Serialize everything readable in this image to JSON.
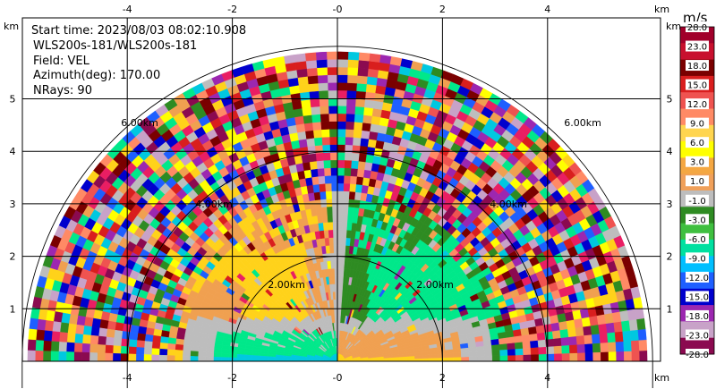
{
  "info": {
    "start_time": "Start time: 2023/08/03 08:02:10.908",
    "instrument": "WLS200s-181/WLS200s-181",
    "field": "Field: VEL",
    "azimuth": "Azimuth(deg): 170.00",
    "nrays": "NRays: 90"
  },
  "chart_data": {
    "type": "heatmap",
    "projection": "polar RHI half-disc",
    "x_unit_label": "km",
    "y_unit_label": "km",
    "xlim": [
      -6.0,
      6.0
    ],
    "ylim": [
      0,
      6.0
    ],
    "x_ticks": [
      -4,
      -2,
      0,
      2,
      4
    ],
    "y_ticks": [
      1,
      2,
      3,
      4,
      5
    ],
    "x_tick_labels": [
      "-4",
      "-2",
      "-0",
      "2",
      "4"
    ],
    "y_tick_labels": [
      "1",
      "2",
      "3",
      "4",
      "5"
    ],
    "max_range_km": 5.9,
    "range_rings_km": [
      2,
      4,
      6
    ],
    "range_ring_labels": {
      "left": [
        "4.00km",
        "6.00km"
      ],
      "right": [
        "2.00km",
        "4.00km",
        "6.00km"
      ],
      "center_left": "2.00km"
    },
    "grid": true,
    "colorbar": {
      "title": "m/s",
      "placement": "right",
      "labels": [
        "28.0",
        "23.0",
        "18.0",
        "15.0",
        "12.0",
        "9.0",
        "6.0",
        "3.0",
        "1.0",
        "-1.0",
        "-3.0",
        "-6.0",
        "-9.0",
        "-12.0",
        "-15.0",
        "-18.0",
        "-23.0",
        "-28.0"
      ],
      "colors": [
        "#a1002b",
        "#c8102e",
        "#7a0000",
        "#d91e1e",
        "#ef5350",
        "#ff8a65",
        "#ffd54f",
        "#ffff00",
        "#f4a742",
        "#f0a05a",
        "#bdbdbd",
        "#2e8b22",
        "#3fbf3f",
        "#00e0a0",
        "#00bfff",
        "#1e5fff",
        "#0000cd",
        "#9c27b0",
        "#c8a2c8",
        "#8b0a50"
      ]
    },
    "regions": [
      {
        "name": "near-field low elevation negative",
        "value_ms": -6.0
      },
      {
        "name": "near-field low elevation positive",
        "value_ms": 3.0
      },
      {
        "name": "left middle block",
        "value_ms": 6.0
      },
      {
        "name": "right middle block",
        "value_ms": -3.0
      },
      {
        "name": "vertical beam",
        "value_ms": 0.0
      },
      {
        "name": "outer noise",
        "value_ms": null
      }
    ]
  }
}
